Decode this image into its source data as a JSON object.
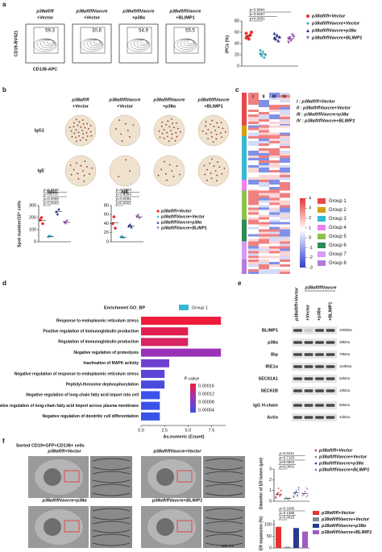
{
  "a": {
    "label": "a",
    "flow_y_axis": "CD19-BV421",
    "flow_x_axis": "CD138-APC",
    "flow": [
      {
        "line1": "p38αfl/fl",
        "line2": "+Vector",
        "gate": "59.3"
      },
      {
        "line1": "p38αfl/flVavcre",
        "line2": "+Vector",
        "gate": "30.8"
      },
      {
        "line1": "p38αfl/flVavcre",
        "line2": "+p38α",
        "gate": "54.9"
      },
      {
        "line1": "p38αfl/flVavcre",
        "line2": "+BLIMP1",
        "gate": "55.5"
      }
    ],
    "chart": {
      "type": "scatter",
      "ylabel": "iPCs (%)",
      "ylim": [
        0,
        80
      ],
      "yticks": [
        0,
        20,
        40,
        60,
        80
      ],
      "series": [
        {
          "name": "p38αfl/fl+Vector",
          "color": "#e8312f",
          "marker": "circle",
          "values": [
            58,
            52,
            48,
            55,
            60,
            50
          ]
        },
        {
          "name": "p38αfl/flVavcre+Vector",
          "color": "#3fb8c8",
          "marker": "diamond",
          "values": [
            22,
            18,
            25,
            15,
            20,
            28
          ]
        },
        {
          "name": "p38αfl/flVavcre+p38α",
          "color": "#2b3a8f",
          "marker": "up",
          "values": [
            50,
            48,
            55,
            45,
            52,
            58
          ]
        },
        {
          "name": "p38αfl/flVavcre+BLIMP1",
          "color": "#a05cc0",
          "marker": "down",
          "values": [
            48,
            50,
            45,
            55,
            52,
            42
          ]
        }
      ],
      "pvalues": [
        "p=0.9864",
        "p=0.5467",
        "p<0.0001"
      ]
    }
  },
  "b": {
    "label": "b",
    "headers": [
      {
        "line1": "p38αfl/fl",
        "line2": "+Vector"
      },
      {
        "line1": "p38αfl/flVavcre",
        "line2": "+Vector"
      },
      {
        "line1": "p38αfl/flVavcre",
        "line2": "+p38α"
      },
      {
        "line1": "p38αfl/flVavcre",
        "line2": "+BLIMP1"
      }
    ],
    "rows": [
      "IgG1",
      "IgE"
    ],
    "ylabel": "Spot number/10⁵ cells",
    "charts": [
      {
        "type": "scatter",
        "title": "IgG1",
        "ylim": [
          0,
          300
        ],
        "yticks": [
          0,
          100,
          200,
          300
        ],
        "pvalues": [
          "p=0.2172",
          "p=0.0717",
          "p=0.0005",
          "p=0.0003"
        ],
        "series": [
          {
            "values": [
              180,
              200,
              150
            ]
          },
          {
            "values": [
              40,
              50,
              45
            ]
          },
          {
            "values": [
              250,
              230,
              270
            ]
          },
          {
            "values": [
              160,
              150,
              170
            ]
          }
        ]
      },
      {
        "type": "scatter",
        "title": "IgE",
        "ylim": [
          0,
          80
        ],
        "yticks": [
          0,
          20,
          40,
          60,
          80
        ],
        "pvalues": [
          "p=0.5823",
          "p=0.4294",
          "p=0.0091",
          "p<0.0001"
        ],
        "series": [
          {
            "values": [
              40,
              55,
              30
            ]
          },
          {
            "values": [
              10,
              12,
              9
            ]
          },
          {
            "values": [
              35,
              38,
              33
            ]
          },
          {
            "values": [
              55,
              58,
              52
            ]
          }
        ]
      }
    ],
    "legend": [
      "p38αfl/fl+Vector",
      "p38αfl/flVavcre+Vector",
      "p38αfl/flVavcre+p38α",
      "p38αfl/flVavcre+BLIMP1"
    ]
  },
  "c": {
    "label": "c",
    "columns": [
      "I",
      "II",
      "III",
      "IV"
    ],
    "legend": [
      "I : p38αfl/fl+Vector",
      "II : p38αfl/flVavcre+Vector",
      "III : p38αfl/flVavcre+p38α",
      "IV : p38αfl/flVavcre+BLIMP1"
    ],
    "colorbar_ticks": [
      4,
      3,
      2,
      1,
      0,
      -1,
      -2,
      -3
    ],
    "groups": [
      {
        "name": "Group 1",
        "color": "#e8494a"
      },
      {
        "name": "Group 2",
        "color": "#d4a017"
      },
      {
        "name": "Group 3",
        "color": "#35b9d0"
      },
      {
        "name": "Group 4",
        "color": "#ee82ee"
      },
      {
        "name": "Group 5",
        "color": "#8bc34a"
      },
      {
        "name": "Group 6",
        "color": "#2e8b57"
      },
      {
        "name": "Group 7",
        "color": "#d59cf5"
      },
      {
        "name": "Group 8",
        "color": "#b47cd6"
      }
    ]
  },
  "d": {
    "label": "d",
    "chart": {
      "type": "bar",
      "title": "Enrichment GO_BP",
      "legend": "Group 1",
      "legend_color": "#35b9d0",
      "xlabel": "As.numeric (Count)",
      "xlim": [
        0,
        9
      ],
      "xticks": [
        {
          "value": 0,
          "label": "0.0"
        },
        {
          "value": 2.5,
          "label": "2.5"
        },
        {
          "value": 5,
          "label": "5.0"
        },
        {
          "value": 7.5,
          "label": "7.5"
        }
      ],
      "categories": [
        "Response to endoplasmic reticulum stress",
        "Positive regulation of immunoglobulin production",
        "Regulation of immunoglobulin production",
        "Negative regulation of proteolysis",
        "Inactivation of MAPK activity",
        "Negative regulation of response to endoplasmic reticulum stress",
        "Peptidyl-threonine dephosphorylation",
        "Negative regulation of long-chain fatty acid import into cell",
        "Negative regulation of long-chain fatty acid import across plasma membrane",
        "Negative regulation of dendritic cell differentiation"
      ],
      "values": [
        8.5,
        5,
        5,
        8.5,
        3,
        2.5,
        2.5,
        2,
        2,
        2
      ],
      "colors": [
        "#ee1c3a",
        "#e21f4f",
        "#d82560",
        "#9a32b8",
        "#6f3fd0",
        "#5a45d8",
        "#4a4ade",
        "#3b52e8",
        "#3a52e8",
        "#3a52e8"
      ],
      "colorbar_title": "P-value",
      "colorbar_labels": [
        "0.00016",
        "0.00012",
        "0.00008",
        "0.00004"
      ]
    }
  },
  "e": {
    "label": "e",
    "top": "p38αfl/flVavcre",
    "columns": [
      "p38αfl/fl+Vector",
      "+Vector",
      "+p38α",
      "+BLIMP1"
    ],
    "rows": [
      {
        "name": "BLIMP1",
        "kda": "100kDa"
      },
      {
        "name": "p38α",
        "kda": "38kDa"
      },
      {
        "name": "Bip",
        "kda": "78kDa"
      },
      {
        "name": "IRE1α",
        "kda": "110kDa"
      },
      {
        "name": "SEC61A1",
        "kda": "52kDa"
      },
      {
        "name": "SEC61B",
        "kda": "10kDa"
      },
      {
        "name": "IgG H-chain",
        "kda": "50kDa"
      },
      {
        "name": "Actin",
        "kda": "42kDa"
      }
    ]
  },
  "f": {
    "label": "f",
    "title": "Sorted CD19+GFP+CD138+ cells",
    "images": [
      "p38αfl/fl+Vector",
      "p38αfl/flVavcre+Vector",
      "p38αfl/flVavcre+p38α",
      "p38αfl/flVavcre+BLIMP1"
    ],
    "scale": "500 nm",
    "diameter": {
      "type": "scatter",
      "ylabel": "Diameter of ER lumen (μm)",
      "ylim": [
        0,
        3
      ],
      "yticks": [
        0,
        1,
        2,
        3
      ],
      "pvalues": [
        "p=0.5211",
        "p=0.7163",
        "p<0.0001",
        "p<0.0001"
      ],
      "series": [
        {
          "name": "p38αfl/fl+Vector",
          "color": "#e8312f",
          "values": [
            0.4,
            0.6,
            0.8,
            0.5,
            1.0,
            0.3,
            0.7,
            1.2,
            0.5,
            0.6
          ]
        },
        {
          "name": "p38αfl/flVavcre+Vector",
          "color": "#7f8c8d",
          "values": [
            0.2,
            0.3,
            0.25,
            0.15,
            0.3,
            0.2,
            0.35,
            0.2,
            0.25,
            0.3
          ]
        },
        {
          "name": "p38αfl/flVavcre+p38α",
          "color": "#2b3a8f",
          "values": [
            0.5,
            0.7,
            1.0,
            0.6,
            1.3,
            0.4,
            0.8,
            0.9,
            0.5,
            1.1
          ]
        },
        {
          "name": "p38αfl/flVavcre+BLIMP1",
          "color": "#a05cc0",
          "values": [
            0.5,
            0.6,
            0.9,
            0.4,
            1.1,
            0.7,
            0.6,
            0.8,
            1.2,
            0.5
          ]
        }
      ]
    },
    "expansion": {
      "type": "bar",
      "ylabel": "ER expansion (%)",
      "ylim": [
        0,
        120
      ],
      "yticks": [
        0,
        50,
        100
      ],
      "pvalues": [
        "p=0.2285",
        "p=0.1355",
        "p=0.0015"
      ],
      "series": [
        {
          "name": "p38αfl/fl+Vector",
          "color": "#e8312f",
          "values": [
            90
          ]
        },
        {
          "name": "p38αfl/flVavcre+Vector",
          "color": "#7f8c8d",
          "values": [
            5
          ]
        },
        {
          "name": "p38αfl/flVavcre+p38α",
          "color": "#2b3a8f",
          "values": [
            85
          ]
        },
        {
          "name": "p38αfl/flVavcre+BLIMP1",
          "color": "#a05cc0",
          "values": [
            70
          ]
        }
      ]
    }
  }
}
